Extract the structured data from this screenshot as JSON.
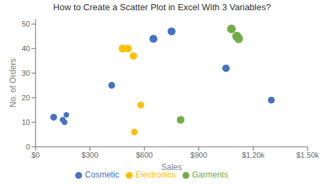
{
  "chart_data": {
    "type": "scatter",
    "title": "How to Create a Scatter Plot in Excel With 3 Variables?",
    "xlabel": "Sales",
    "ylabel": "No. of Orders",
    "xlim": [
      0,
      1500
    ],
    "ylim": [
      0,
      52
    ],
    "xticks": [
      {
        "value": 0,
        "label": "$0"
      },
      {
        "value": 300,
        "label": "$300"
      },
      {
        "value": 600,
        "label": "$600"
      },
      {
        "value": 900,
        "label": "$900"
      },
      {
        "value": 1200,
        "label": "$1.20k"
      },
      {
        "value": 1500,
        "label": "$1.50k"
      }
    ],
    "yticks": [
      0,
      10,
      20,
      30,
      40,
      50
    ],
    "grid": false,
    "legend": "bottom",
    "series": [
      {
        "name": "Cosmetic",
        "color": "#4472C4",
        "x": [
          100,
          150,
          170,
          160,
          420,
          650,
          750,
          1050,
          1300
        ],
        "values": [
          12,
          11,
          13,
          10,
          25,
          44,
          47,
          32,
          19
        ],
        "sizes": [
          40,
          30,
          25,
          28,
          40,
          55,
          55,
          48,
          40
        ]
      },
      {
        "name": "Electronics",
        "color": "#FFC000",
        "x": [
          480,
          510,
          540,
          580,
          545
        ],
        "values": [
          40,
          40,
          37,
          17,
          6
        ],
        "sizes": [
          55,
          50,
          48,
          40,
          38
        ]
      },
      {
        "name": "Garments",
        "color": "#70AD47",
        "x": [
          800,
          1080,
          1110,
          1120
        ],
        "values": [
          11,
          48,
          45,
          44
        ],
        "sizes": [
          50,
          65,
          72,
          65
        ]
      }
    ]
  }
}
